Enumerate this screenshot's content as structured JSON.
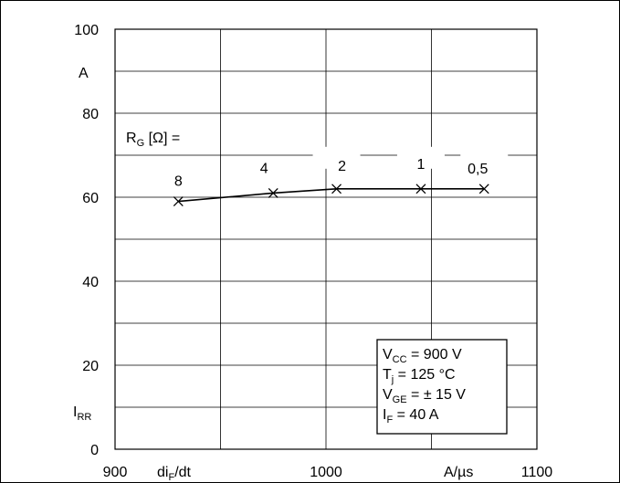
{
  "chart_data": {
    "type": "line",
    "xlim": [
      900,
      1100
    ],
    "ylim": [
      0,
      100
    ],
    "x_ticks": [
      "900",
      "1000",
      "1100"
    ],
    "y_ticks": [
      "0",
      "20",
      "40",
      "60",
      "80",
      "100"
    ],
    "x_axis_label": {
      "main": "di",
      "sub": "F",
      "tail": "/dt"
    },
    "x_unit": "A/µs",
    "y_axis_label": {
      "main": "I",
      "sub": "RR"
    },
    "y_unit": "A",
    "grid": true,
    "series": [
      {
        "x": [
          930,
          975,
          1005,
          1045,
          1075
        ],
        "y": [
          59,
          61,
          62,
          62,
          62
        ],
        "point_labels": [
          "8",
          "4",
          "2",
          "1",
          "0,5"
        ]
      }
    ],
    "rg_label": {
      "main": "R",
      "sub": "G",
      "tail": " [Ω] ="
    },
    "conditions": [
      {
        "main": "V",
        "sub": "CC",
        "value": " = 900 V"
      },
      {
        "main": "T",
        "sub": "j",
        "value": "  = 125 °C"
      },
      {
        "main": "V",
        "sub": "GE",
        "value": " = ± 15 V"
      },
      {
        "main": "I",
        "sub": "F",
        "value": "   = 40 A"
      }
    ]
  }
}
